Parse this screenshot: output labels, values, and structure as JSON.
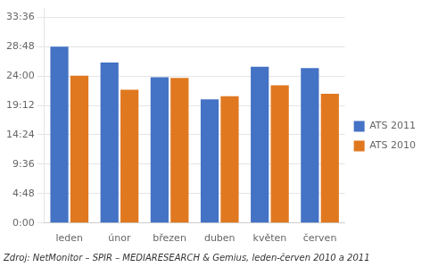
{
  "chart_data": {
    "type": "bar",
    "categories": [
      "leden",
      "únor",
      "březen",
      "duben",
      "květen",
      "červen"
    ],
    "series": [
      {
        "name": "ATS 2011",
        "color": "#4472C4",
        "values": [
          1728,
          1572,
          1428,
          1212,
          1530,
          1518
        ]
      },
      {
        "name": "ATS 2010",
        "color": "#E07820",
        "values": [
          1443,
          1305,
          1422,
          1242,
          1350,
          1266
        ]
      }
    ],
    "ylim": [
      0,
      2100
    ],
    "yticks": [
      {
        "value": 0,
        "label": "0:00"
      },
      {
        "value": 288,
        "label": "4:48"
      },
      {
        "value": 576,
        "label": "9:36"
      },
      {
        "value": 864,
        "label": "14:24"
      },
      {
        "value": 1152,
        "label": "19:12"
      },
      {
        "value": 1440,
        "label": "24:00"
      },
      {
        "value": 1728,
        "label": "28:48"
      },
      {
        "value": 2016,
        "label": "33:36"
      }
    ],
    "grid": true,
    "legend": "right",
    "annotations": [
      "Zdroj: NetMonitor – SPIR – MEDIARESEARCH & Gemius, leden-červen 2010 a 2011"
    ]
  }
}
